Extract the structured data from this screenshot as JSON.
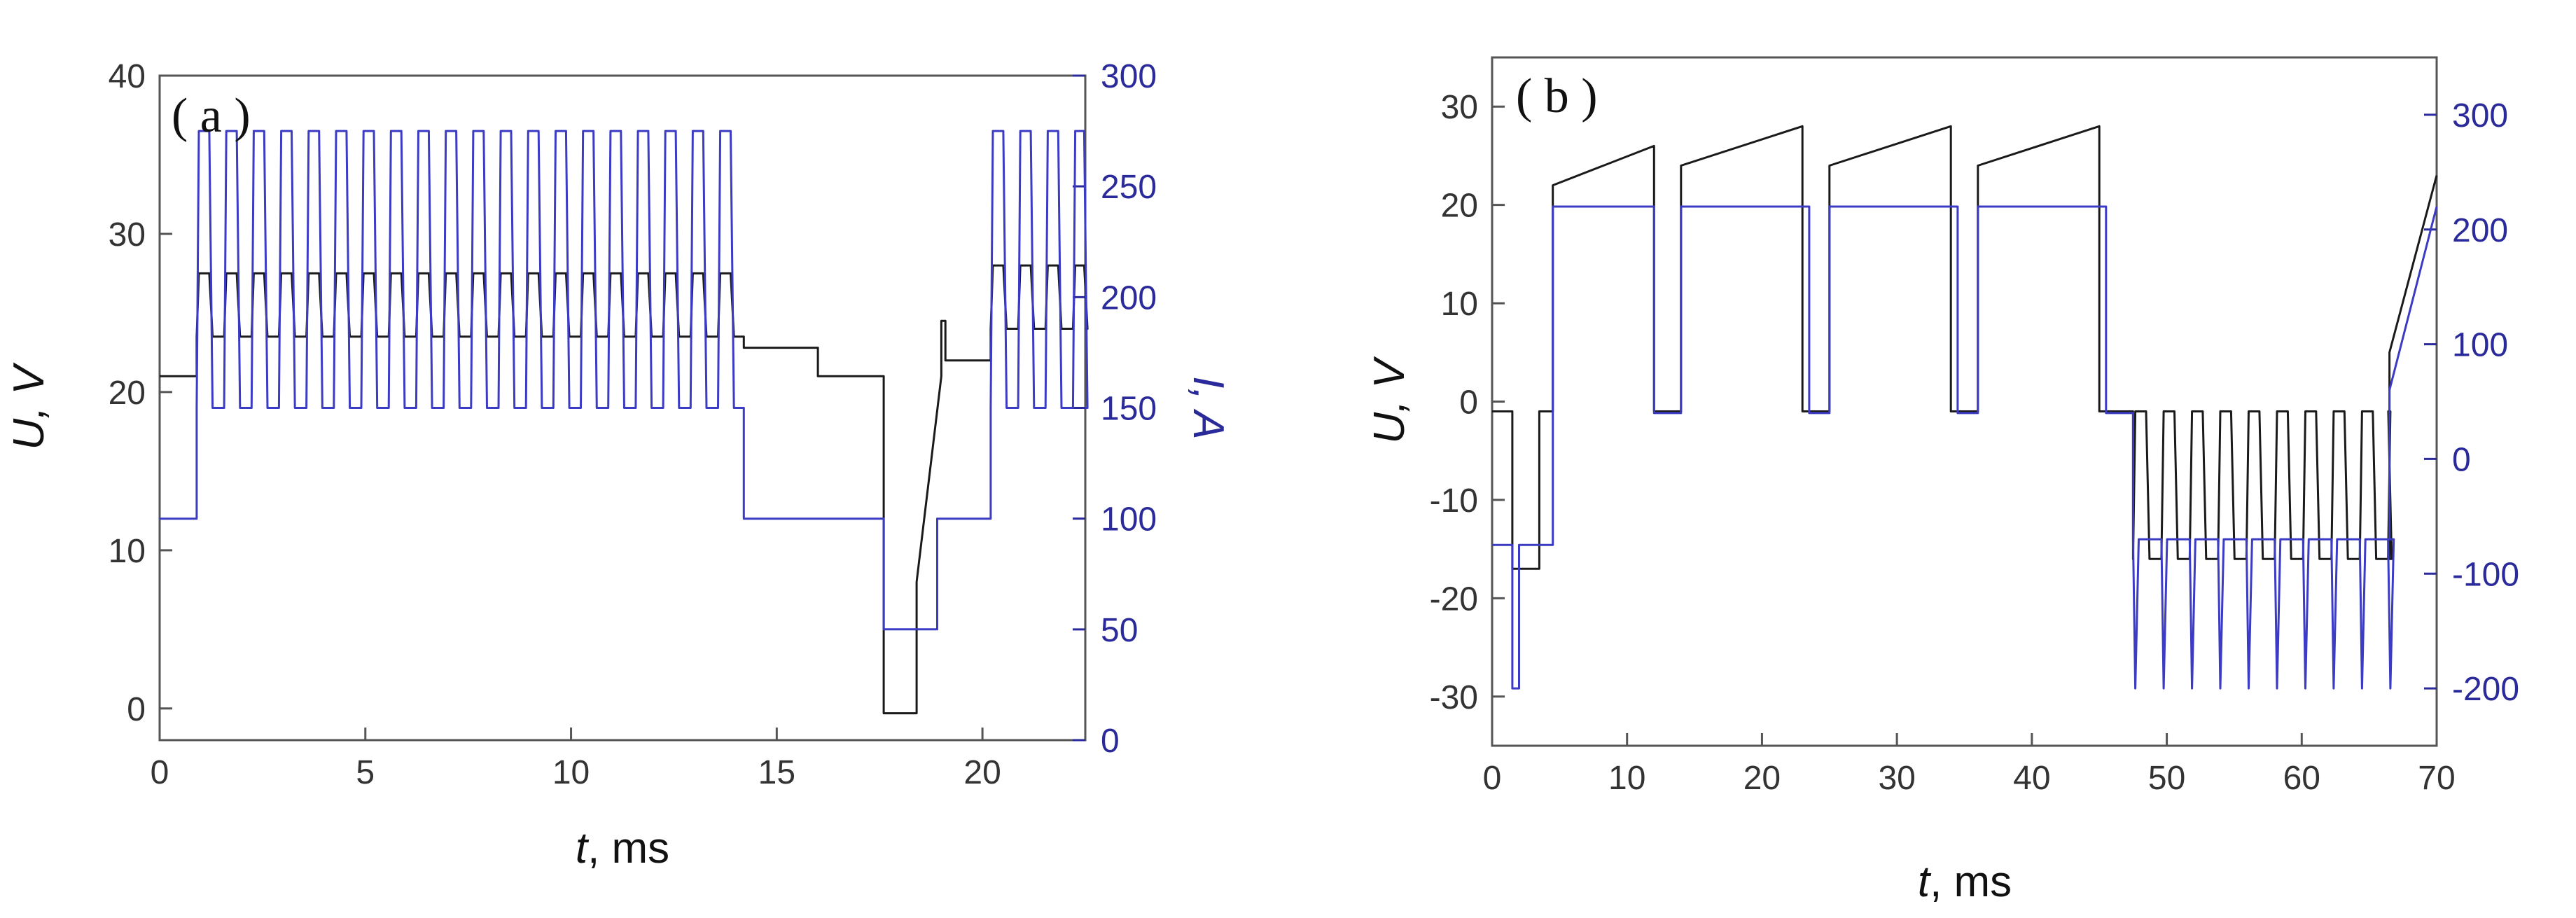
{
  "chart_data": [
    {
      "type": "line",
      "panel_label": "( a )",
      "xlabel_var": "t",
      "xlabel_unit": ", ms",
      "ylabel": "U, V",
      "y2label": "I, A",
      "xlim": [
        0,
        22.5
      ],
      "ylim": [
        -2,
        40
      ],
      "y2lim": [
        0,
        300
      ],
      "xticks": [
        0,
        5,
        10,
        15,
        20
      ],
      "yticks": [
        0,
        10,
        20,
        30,
        40
      ],
      "y2ticks": [
        0,
        50,
        100,
        150,
        200,
        250,
        300
      ],
      "series": [
        {
          "axis": "left",
          "color": "#1a1a1a",
          "segments": [
            {
              "type": "const",
              "x0": 0,
              "x1": 0.9,
              "y": 21
            },
            {
              "type": "pulses",
              "x0": 0.9,
              "x1": 14.2,
              "period": 0.667,
              "duty": 0.5,
              "high": 27.5,
              "low": 23.5
            },
            {
              "type": "const",
              "x0": 14.2,
              "x1": 16,
              "y": 22.8
            },
            {
              "type": "const",
              "x0": 16,
              "x1": 17.6,
              "y": 21
            },
            {
              "type": "const",
              "x0": 17.6,
              "x1": 18.4,
              "y": -0.3
            },
            {
              "type": "ramp",
              "x0": 18.4,
              "x1": 19.0,
              "y0": 8,
              "y1": 21
            },
            {
              "type": "const",
              "x0": 19.0,
              "x1": 19.1,
              "y": 24.5
            },
            {
              "type": "const",
              "x0": 19.1,
              "x1": 20.2,
              "y": 22
            },
            {
              "type": "pulses",
              "x0": 20.2,
              "x1": 22.5,
              "period": 0.667,
              "duty": 0.5,
              "high": 28,
              "low": 24
            }
          ]
        },
        {
          "axis": "right",
          "color": "#3b3bc4",
          "segments": [
            {
              "type": "const",
              "x0": 0,
              "x1": 0.9,
              "y": 100
            },
            {
              "type": "pulses",
              "x0": 0.9,
              "x1": 14.2,
              "period": 0.667,
              "duty": 0.5,
              "high": 275,
              "low": 150
            },
            {
              "type": "const",
              "x0": 14.2,
              "x1": 17.6,
              "y": 100
            },
            {
              "type": "const",
              "x0": 17.6,
              "x1": 18.9,
              "y": 50
            },
            {
              "type": "const",
              "x0": 18.9,
              "x1": 20.2,
              "y": 100
            },
            {
              "type": "pulses",
              "x0": 20.2,
              "x1": 22.5,
              "period": 0.667,
              "duty": 0.5,
              "high": 275,
              "low": 150
            }
          ]
        }
      ]
    },
    {
      "type": "line",
      "panel_label": "( b )",
      "xlabel_var": "t",
      "xlabel_unit": ", ms",
      "ylabel": "U, V",
      "y2label": "",
      "xlim": [
        0,
        70
      ],
      "ylim": [
        -35,
        35
      ],
      "y2lim": [
        -250,
        350
      ],
      "xticks": [
        0,
        10,
        20,
        30,
        40,
        50,
        60,
        70
      ],
      "yticks": [
        -30,
        -20,
        -10,
        0,
        10,
        20,
        30
      ],
      "y2ticks": [
        -200,
        -100,
        0,
        100,
        200,
        300
      ],
      "series": [
        {
          "axis": "left",
          "color": "#1a1a1a",
          "segments": [
            {
              "type": "const",
              "x0": 0,
              "x1": 1.5,
              "y": -1
            },
            {
              "type": "const",
              "x0": 1.5,
              "x1": 3.5,
              "y": -17
            },
            {
              "type": "const",
              "x0": 3.5,
              "x1": 4.5,
              "y": -1
            },
            {
              "type": "ramp",
              "x0": 4.5,
              "x1": 12,
              "y0": 22,
              "y1": 26
            },
            {
              "type": "const",
              "x0": 12,
              "x1": 14,
              "y": -1
            },
            {
              "type": "ramp",
              "x0": 14,
              "x1": 23,
              "y0": 24,
              "y1": 28
            },
            {
              "type": "const",
              "x0": 23,
              "x1": 25,
              "y": -1
            },
            {
              "type": "ramp",
              "x0": 25,
              "x1": 34,
              "y0": 24,
              "y1": 28
            },
            {
              "type": "const",
              "x0": 34,
              "x1": 36,
              "y": -1
            },
            {
              "type": "ramp",
              "x0": 36,
              "x1": 45,
              "y0": 24,
              "y1": 28
            },
            {
              "type": "const",
              "x0": 45,
              "x1": 47.5,
              "y": -1
            },
            {
              "type": "pulses",
              "x0": 47.5,
              "x1": 66.5,
              "period": 2.1,
              "duty": 0.5,
              "high": -1,
              "low": -16
            },
            {
              "type": "ramp",
              "x0": 66.5,
              "x1": 70,
              "y0": 5,
              "y1": 23
            }
          ]
        },
        {
          "axis": "right",
          "color": "#3b3bc4",
          "segments": [
            {
              "type": "const",
              "x0": 0,
              "x1": 1.5,
              "y": -75
            },
            {
              "type": "const",
              "x0": 1.5,
              "x1": 2,
              "y": -200
            },
            {
              "type": "const",
              "x0": 2,
              "x1": 4.5,
              "y": -75
            },
            {
              "type": "const",
              "x0": 4.5,
              "x1": 12,
              "y": 220
            },
            {
              "type": "const",
              "x0": 12,
              "x1": 14,
              "y": 40
            },
            {
              "type": "const",
              "x0": 14,
              "x1": 23.5,
              "y": 220
            },
            {
              "type": "const",
              "x0": 23.5,
              "x1": 25,
              "y": 40
            },
            {
              "type": "const",
              "x0": 25,
              "x1": 34.5,
              "y": 220
            },
            {
              "type": "const",
              "x0": 34.5,
              "x1": 36,
              "y": 40
            },
            {
              "type": "const",
              "x0": 36,
              "x1": 45.5,
              "y": 220
            },
            {
              "type": "const",
              "x0": 45.5,
              "x1": 47.5,
              "y": 40
            },
            {
              "type": "spikes",
              "x0": 47.5,
              "x1": 66.5,
              "period": 2.1,
              "base": -70,
              "spike": -200
            },
            {
              "type": "ramp",
              "x0": 66.5,
              "x1": 70,
              "y0": 60,
              "y1": 220
            }
          ]
        }
      ]
    }
  ]
}
